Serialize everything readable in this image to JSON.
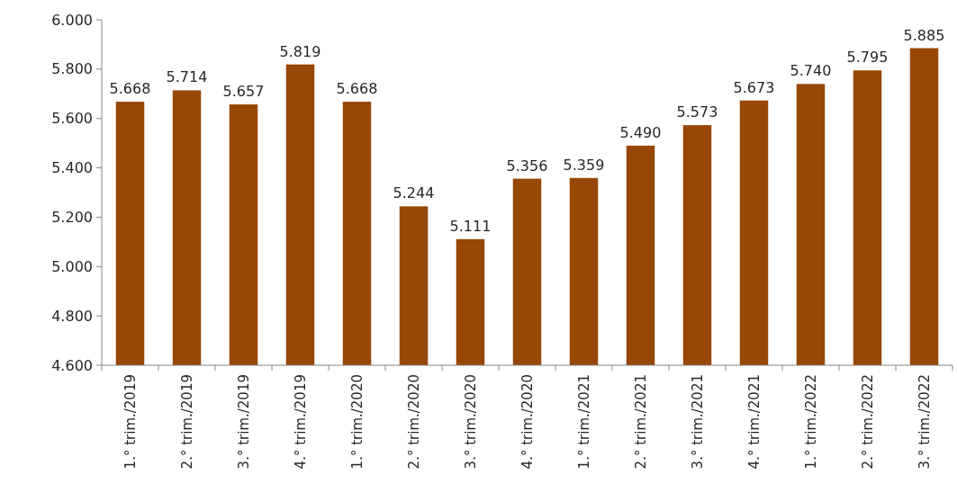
{
  "chart_data": {
    "type": "bar",
    "categories": [
      "1.° trim./2019",
      "2.° trim./2019",
      "3.° trim./2019",
      "4.° trim./2019",
      "1.° trim./2020",
      "2.° trim./2020",
      "3.° trim./2020",
      "4.° trim./2020",
      "1.° trim./2021",
      "2.° trim./2021",
      "3.° trim./2021",
      "4.° trim./2021",
      "1.° trim./2022",
      "2.° trim./2022",
      "3.° trim./2022"
    ],
    "values": [
      5668,
      5714,
      5657,
      5819,
      5668,
      5244,
      5111,
      5356,
      5359,
      5490,
      5573,
      5673,
      5740,
      5795,
      5885
    ],
    "value_labels": [
      "5.668",
      "5.714",
      "5.657",
      "5.819",
      "5.668",
      "5.244",
      "5.111",
      "5.356",
      "5.359",
      "5.490",
      "5.573",
      "5.673",
      "5.740",
      "5.795",
      "5.885"
    ],
    "color": "#974706",
    "ylim": [
      4600,
      6000
    ],
    "yticks": [
      {
        "value": 4600,
        "label": "4.600"
      },
      {
        "value": 4800,
        "label": "4.800"
      },
      {
        "value": 5000,
        "label": "5.000"
      },
      {
        "value": 5200,
        "label": "5.200"
      },
      {
        "value": 5400,
        "label": "5.400"
      },
      {
        "value": 5600,
        "label": "5.600"
      },
      {
        "value": 5800,
        "label": "5.800"
      },
      {
        "value": 6000,
        "label": "6.000"
      }
    ],
    "grid": false
  }
}
